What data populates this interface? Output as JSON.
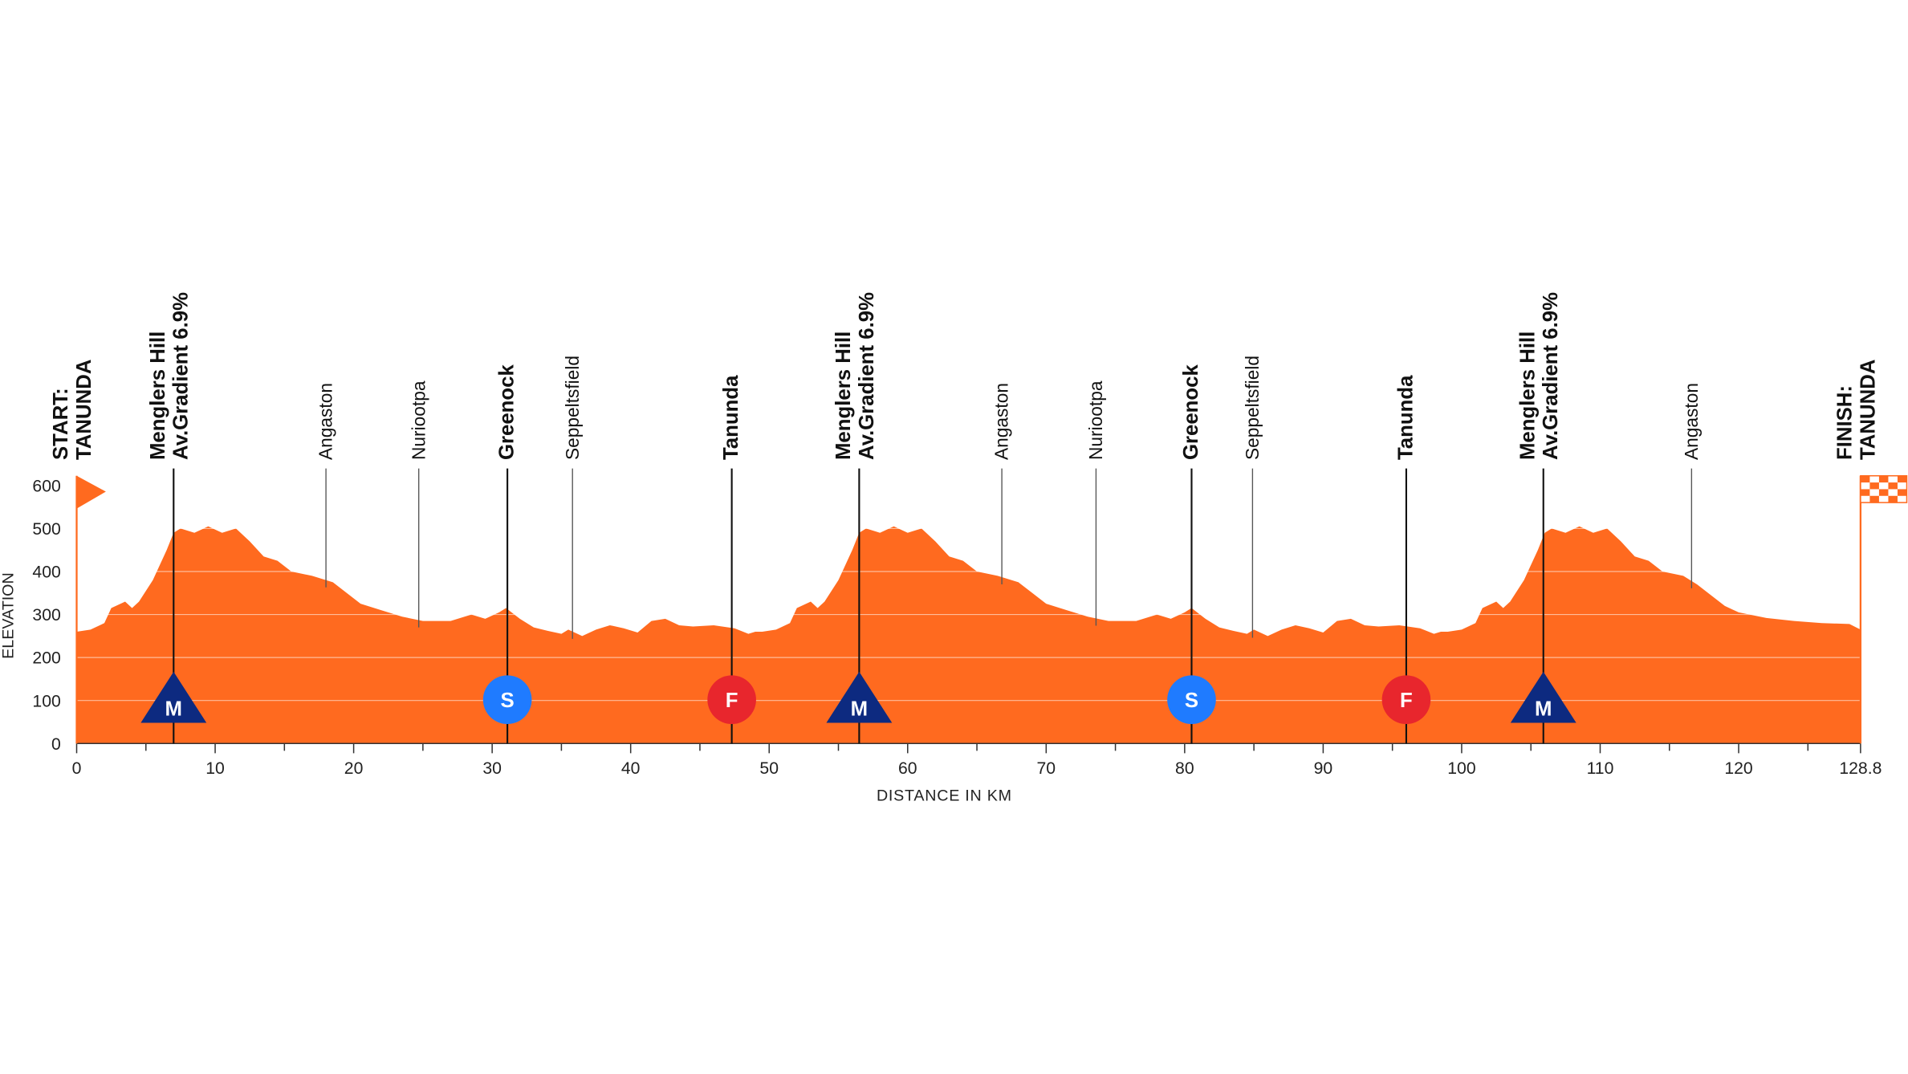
{
  "chart_data": {
    "type": "area",
    "color": "#ff6a1f",
    "x_label": "DISTANCE IN KM",
    "y_label": "ELEVATION",
    "xlim": [
      0,
      128.8
    ],
    "ylim": [
      0,
      600
    ],
    "xticks": [
      0,
      10,
      20,
      30,
      40,
      50,
      60,
      70,
      80,
      90,
      100,
      110,
      120,
      128.8
    ],
    "xminorticks": [
      5,
      15,
      25,
      35,
      45,
      55,
      65,
      75,
      85,
      95,
      105,
      115,
      125
    ],
    "yticks": [
      0,
      100,
      200,
      300,
      400,
      500,
      600
    ],
    "grid": true,
    "x": [
      0,
      1,
      2,
      2.5,
      3.5,
      4,
      4.5,
      5.5,
      6.5,
      7,
      7.5,
      8.5,
      9.5,
      10.5,
      11.5,
      12.5,
      13.5,
      14.5,
      15.5,
      17,
      18.5,
      19.5,
      20.5,
      22,
      23.5,
      25,
      27,
      28.5,
      29.5,
      30.5,
      31,
      32,
      33,
      34,
      35,
      35.5,
      36.5,
      37.5,
      38.5,
      39.5,
      40.5,
      41.5,
      42.5,
      43.5,
      44.5,
      46,
      47.5,
      48.5,
      49,
      49.5,
      50.5,
      51.5,
      52,
      53,
      53.5,
      54,
      55,
      56,
      56.5,
      57,
      58,
      59,
      60,
      61,
      62,
      63,
      64,
      65,
      66.5,
      68,
      69,
      70,
      71.5,
      73,
      74.5,
      76.5,
      78,
      79,
      80,
      80.5,
      81.5,
      82.5,
      83.5,
      84.5,
      85,
      86,
      87,
      88,
      89,
      90,
      91,
      92,
      93,
      94,
      95.5,
      97,
      98,
      98.5,
      99,
      100,
      101,
      101.5,
      102.5,
      103,
      103.5,
      104.5,
      105.5,
      106,
      106.5,
      107.5,
      108.5,
      109.5,
      110.5,
      111.5,
      112.5,
      113.5,
      114.5,
      116,
      117,
      118,
      119,
      120,
      122,
      124,
      126,
      128,
      128.8
    ],
    "values": [
      260,
      265,
      280,
      315,
      330,
      315,
      330,
      380,
      450,
      490,
      500,
      490,
      505,
      490,
      500,
      470,
      435,
      425,
      400,
      390,
      375,
      350,
      325,
      310,
      295,
      285,
      285,
      300,
      290,
      305,
      315,
      290,
      270,
      262,
      255,
      265,
      250,
      265,
      275,
      268,
      258,
      285,
      290,
      275,
      272,
      275,
      268,
      255,
      260,
      260,
      265,
      280,
      315,
      330,
      315,
      330,
      380,
      450,
      490,
      500,
      490,
      505,
      490,
      500,
      470,
      435,
      425,
      400,
      390,
      375,
      350,
      325,
      310,
      295,
      285,
      285,
      300,
      290,
      305,
      315,
      290,
      270,
      262,
      255,
      265,
      250,
      265,
      275,
      268,
      258,
      285,
      290,
      275,
      272,
      275,
      268,
      255,
      260,
      260,
      265,
      280,
      315,
      330,
      315,
      330,
      380,
      450,
      490,
      500,
      490,
      505,
      490,
      500,
      470,
      435,
      425,
      400,
      390,
      370,
      345,
      320,
      305,
      292,
      285,
      280,
      278,
      265
    ],
    "waypoints": [
      {
        "km": 0,
        "lines": [
          "START:",
          "TANUNDA"
        ],
        "bold": true
      },
      {
        "km": 7,
        "lines": [
          "Menglers Hill",
          "Av.Gradient 6.9%"
        ],
        "bold": true,
        "icon": "M"
      },
      {
        "km": 18,
        "lines": [
          "Angaston"
        ],
        "bold": false
      },
      {
        "km": 24.7,
        "lines": [
          "Nuriootpa"
        ],
        "bold": false
      },
      {
        "km": 31.1,
        "lines": [
          "Greenock"
        ],
        "bold": true,
        "icon": "S"
      },
      {
        "km": 35.8,
        "lines": [
          "Seppeltsfield"
        ],
        "bold": false
      },
      {
        "km": 47.3,
        "lines": [
          "Tanunda"
        ],
        "bold": true,
        "icon": "F"
      },
      {
        "km": 56.5,
        "lines": [
          "Menglers Hill",
          "Av.Gradient 6.9%"
        ],
        "bold": true,
        "icon": "M"
      },
      {
        "km": 66.8,
        "lines": [
          "Angaston"
        ],
        "bold": false
      },
      {
        "km": 73.6,
        "lines": [
          "Nuriootpa"
        ],
        "bold": false
      },
      {
        "km": 80.5,
        "lines": [
          "Greenock"
        ],
        "bold": true,
        "icon": "S"
      },
      {
        "km": 84.9,
        "lines": [
          "Seppeltsfield"
        ],
        "bold": false
      },
      {
        "km": 96,
        "lines": [
          "Tanunda"
        ],
        "bold": true,
        "icon": "F"
      },
      {
        "km": 105.9,
        "lines": [
          "Menglers Hill",
          "Av.Gradient 6.9%"
        ],
        "bold": true,
        "icon": "M"
      },
      {
        "km": 116.6,
        "lines": [
          "Angaston"
        ],
        "bold": false
      },
      {
        "km": 128.8,
        "lines": [
          "FINISH:",
          "TANUNDA"
        ],
        "bold": true
      }
    ]
  }
}
